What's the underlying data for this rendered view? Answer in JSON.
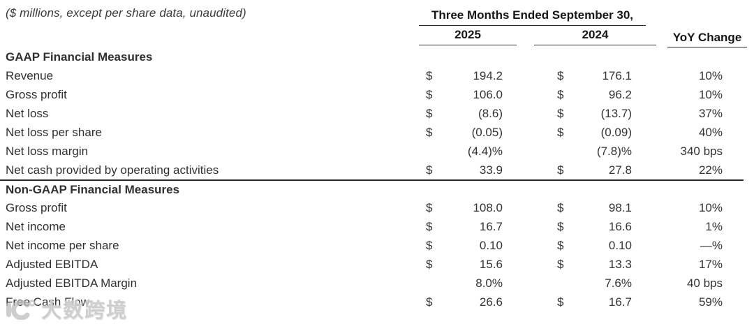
{
  "note": "($ millions, except per share data, unaudited)",
  "header": {
    "period": "Three Months Ended September 30,",
    "col_2025": "2025",
    "col_2024": "2024",
    "yoy": "YoY Change"
  },
  "sections": [
    {
      "title": "GAAP Financial Measures",
      "rows": [
        {
          "label": "Revenue",
          "cur1": "$",
          "v2025": "194.2",
          "cur2": "$",
          "v2024": "176.1",
          "yoy": "10%"
        },
        {
          "label": "Gross profit",
          "cur1": "$",
          "v2025": "106.0",
          "cur2": "$",
          "v2024": "96.2",
          "yoy": "10%"
        },
        {
          "label": "Net loss",
          "cur1": "$",
          "v2025": "(8.6)",
          "cur2": "$",
          "v2024": "(13.7)",
          "yoy": "37%"
        },
        {
          "label": "Net loss per share",
          "cur1": "$",
          "v2025": "(0.05)",
          "cur2": "$",
          "v2024": "(0.09)",
          "yoy": "40%"
        },
        {
          "label": "Net loss margin",
          "cur1": "",
          "v2025": "(4.4)%",
          "cur2": "",
          "v2024": "(7.8)%",
          "yoy": "340 bps"
        },
        {
          "label": "Net cash provided by operating activities",
          "cur1": "$",
          "v2025": "33.9",
          "cur2": "$",
          "v2024": "27.8",
          "yoy": "22%"
        }
      ]
    },
    {
      "title": "Non-GAAP Financial Measures",
      "rows": [
        {
          "label": "Gross profit",
          "cur1": "$",
          "v2025": "108.0",
          "cur2": "$",
          "v2024": "98.1",
          "yoy": "10%"
        },
        {
          "label": "Net income",
          "cur1": "$",
          "v2025": "16.7",
          "cur2": "$",
          "v2024": "16.6",
          "yoy": "1%"
        },
        {
          "label": "Net income per share",
          "cur1": "$",
          "v2025": "0.10",
          "cur2": "$",
          "v2024": "0.10",
          "yoy": "—%"
        },
        {
          "label": "Adjusted EBITDA",
          "cur1": "$",
          "v2025": "15.6",
          "cur2": "$",
          "v2024": "13.3",
          "yoy": "17%"
        },
        {
          "label": "Adjusted EBITDA Margin",
          "cur1": "",
          "v2025": "8.0%",
          "cur2": "",
          "v2024": "7.6%",
          "yoy": "40 bps"
        },
        {
          "label": "Free Cash Flow",
          "cur1": "$",
          "v2025": "26.6",
          "cur2": "$",
          "v2024": "16.7",
          "yoy": "59%"
        }
      ]
    }
  ],
  "watermark": {
    "text": "大数跨境",
    "icon": "brand-logo-icon"
  },
  "colors": {
    "text": "#333333",
    "bold_text": "#161616",
    "rule_line": "#2a2a2a",
    "watermark": "#bebebe",
    "background": "#ffffff"
  }
}
